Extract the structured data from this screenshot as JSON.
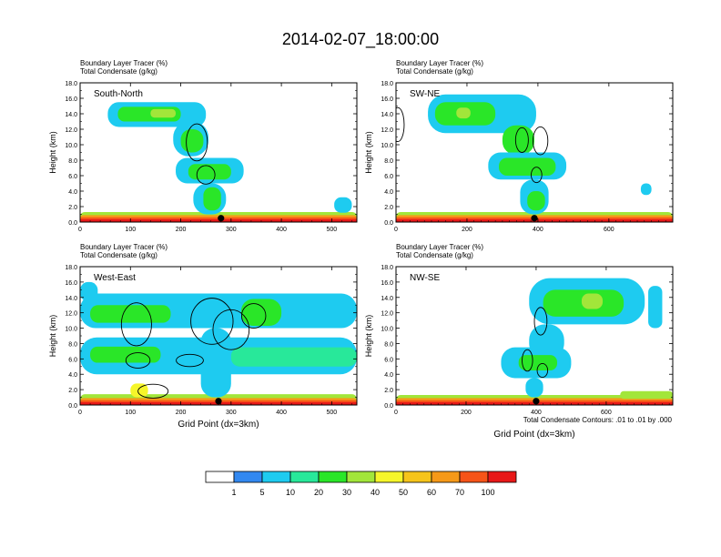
{
  "title": "2014-02-07_18:00:00",
  "chart_data": {
    "type": "heatmap",
    "title": "2014-02-07_18:00:00",
    "panels": [
      {
        "name": "South-North",
        "label_line1": "Boundary Layer Tracer   (%)",
        "label_line2": "Total Condensate   (g/kg)",
        "ylabel": "Height (km)",
        "xlabel": "",
        "xlim": [
          0,
          550
        ],
        "ylim": [
          0,
          18
        ],
        "xticks": [
          0,
          100,
          200,
          300,
          400,
          500
        ],
        "marker_x": 280,
        "layers": [
          {
            "x0": 0,
            "x1": 550,
            "y0": 0,
            "y1": 1.3,
            "bin": 5
          },
          {
            "x0": 0,
            "x1": 550,
            "y0": 0,
            "y1": 0.9,
            "bin": 8
          },
          {
            "x0": 0,
            "x1": 550,
            "y0": 0,
            "y1": 0.6,
            "bin": 9
          },
          {
            "x0": 0,
            "x1": 550,
            "y0": 0,
            "y1": 0.35,
            "bin": 10
          },
          {
            "x0": 55,
            "x1": 250,
            "y0": 12.3,
            "y1": 15.5,
            "bin": 2
          },
          {
            "x0": 75,
            "x1": 200,
            "y0": 13.0,
            "y1": 14.9,
            "bin": 4
          },
          {
            "x0": 140,
            "x1": 190,
            "y0": 13.5,
            "y1": 14.6,
            "bin": 5
          },
          {
            "x0": 185,
            "x1": 255,
            "y0": 8.5,
            "y1": 13.0,
            "bin": 2
          },
          {
            "x0": 200,
            "x1": 245,
            "y0": 9.0,
            "y1": 12.0,
            "bin": 4
          },
          {
            "x0": 190,
            "x1": 325,
            "y0": 5.0,
            "y1": 8.3,
            "bin": 2
          },
          {
            "x0": 215,
            "x1": 300,
            "y0": 5.5,
            "y1": 7.5,
            "bin": 4
          },
          {
            "x0": 225,
            "x1": 290,
            "y0": 1.0,
            "y1": 5.0,
            "bin": 2
          },
          {
            "x0": 245,
            "x1": 280,
            "y0": 1.5,
            "y1": 4.5,
            "bin": 4
          },
          {
            "x0": 505,
            "x1": 540,
            "y0": 1.2,
            "y1": 3.2,
            "bin": 2
          }
        ],
        "contours": [
          {
            "cx": 232,
            "cy": 10.3,
            "rx": 7,
            "ry": 2.4
          },
          {
            "cx": 250,
            "cy": 6.1,
            "rx": 6,
            "ry": 1.2
          }
        ]
      },
      {
        "name": "SW-NE",
        "label_line1": "Boundary Layer Tracer   (%)",
        "label_line2": "Total Condensate   (g/kg)",
        "ylabel": "Height (km)",
        "xlabel": "",
        "xlim": [
          0,
          780
        ],
        "ylim": [
          0,
          18
        ],
        "xticks": [
          0,
          200,
          400,
          600
        ],
        "marker_x": 390,
        "layers": [
          {
            "x0": 0,
            "x1": 780,
            "y0": 0,
            "y1": 1.3,
            "bin": 5
          },
          {
            "x0": 0,
            "x1": 780,
            "y0": 0,
            "y1": 0.9,
            "bin": 8
          },
          {
            "x0": 0,
            "x1": 780,
            "y0": 0,
            "y1": 0.6,
            "bin": 9
          },
          {
            "x0": 0,
            "x1": 780,
            "y0": 0,
            "y1": 0.35,
            "bin": 10
          },
          {
            "x0": 90,
            "x1": 395,
            "y0": 11.5,
            "y1": 16.5,
            "bin": 2
          },
          {
            "x0": 110,
            "x1": 280,
            "y0": 12.5,
            "y1": 15.5,
            "bin": 4
          },
          {
            "x0": 170,
            "x1": 210,
            "y0": 13.4,
            "y1": 14.8,
            "bin": 5
          },
          {
            "x0": 300,
            "x1": 390,
            "y0": 8.7,
            "y1": 12.5,
            "bin": 4
          },
          {
            "x0": 260,
            "x1": 480,
            "y0": 5.5,
            "y1": 9.0,
            "bin": 2
          },
          {
            "x0": 290,
            "x1": 450,
            "y0": 6.0,
            "y1": 8.3,
            "bin": 4
          },
          {
            "x0": 350,
            "x1": 430,
            "y0": 1.0,
            "y1": 5.5,
            "bin": 2
          },
          {
            "x0": 370,
            "x1": 420,
            "y0": 1.5,
            "y1": 4.0,
            "bin": 4
          },
          {
            "x0": 690,
            "x1": 720,
            "y0": 3.5,
            "y1": 5.0,
            "bin": 2
          }
        ],
        "contours": [
          {
            "cx": 355,
            "cy": 10.6,
            "rx": 6,
            "ry": 1.6
          },
          {
            "cx": 407,
            "cy": 10.5,
            "rx": 7,
            "ry": 1.8
          },
          {
            "cx": 5,
            "cy": 12.6,
            "rx": 6,
            "ry": 2.2
          },
          {
            "cx": 396,
            "cy": 6.1,
            "rx": 5,
            "ry": 1.0
          }
        ]
      },
      {
        "name": "West-East",
        "label_line1": "Boundary Layer Tracer   (%)",
        "label_line2": "Total Condensate   (g/kg)",
        "ylabel": "Height (km)",
        "xlabel": "Grid Point (dx=3km)",
        "xlim": [
          0,
          550
        ],
        "ylim": [
          0,
          18
        ],
        "xticks": [
          0,
          100,
          200,
          300,
          400,
          500
        ],
        "marker_x": 275,
        "layers": [
          {
            "x0": 0,
            "x1": 550,
            "y0": 0,
            "y1": 1.4,
            "bin": 5
          },
          {
            "x0": 0,
            "x1": 550,
            "y0": 0,
            "y1": 0.9,
            "bin": 8
          },
          {
            "x0": 0,
            "x1": 550,
            "y0": 0,
            "y1": 0.6,
            "bin": 9
          },
          {
            "x0": 0,
            "x1": 550,
            "y0": 0,
            "y1": 0.35,
            "bin": 10
          },
          {
            "x0": 0,
            "x1": 550,
            "y0": 10.0,
            "y1": 14.5,
            "bin": 2
          },
          {
            "x0": 20,
            "x1": 180,
            "y0": 10.7,
            "y1": 13.0,
            "bin": 4
          },
          {
            "x0": 320,
            "x1": 400,
            "y0": 10.3,
            "y1": 13.8,
            "bin": 4
          },
          {
            "x0": 0,
            "x1": 550,
            "y0": 4.0,
            "y1": 8.8,
            "bin": 2
          },
          {
            "x0": 20,
            "x1": 160,
            "y0": 5.5,
            "y1": 7.6,
            "bin": 4
          },
          {
            "x0": 300,
            "x1": 550,
            "y0": 5.0,
            "y1": 7.5,
            "bin": 3
          },
          {
            "x0": 240,
            "x1": 300,
            "y0": 1.0,
            "y1": 10.0,
            "bin": 2
          },
          {
            "x0": 0,
            "x1": 35,
            "y0": 13.5,
            "y1": 16.0,
            "bin": 2
          },
          {
            "x0": 100,
            "x1": 135,
            "y0": 1.0,
            "y1": 2.8,
            "bin": 6
          }
        ],
        "contours": [
          {
            "cx": 112,
            "cy": 10.5,
            "rx": 10,
            "ry": 2.8
          },
          {
            "cx": 262,
            "cy": 10.9,
            "rx": 14,
            "ry": 3.0
          },
          {
            "cx": 300,
            "cy": 9.8,
            "rx": 12,
            "ry": 2.6
          },
          {
            "cx": 345,
            "cy": 11.6,
            "rx": 8,
            "ry": 1.6
          },
          {
            "cx": 115,
            "cy": 5.8,
            "rx": 8,
            "ry": 1.0
          },
          {
            "cx": 218,
            "cy": 5.8,
            "rx": 9,
            "ry": 0.8
          },
          {
            "cx": 145,
            "cy": 1.8,
            "rx": 10,
            "ry": 0.9
          }
        ]
      },
      {
        "name": "NW-SE",
        "label_line1": "Boundary Layer Tracer   (%)",
        "label_line2": "Total Condensate   (g/kg)",
        "ylabel": "Height (km)",
        "xlabel": "Grid Point (dx=3km)",
        "xlim": [
          0,
          790
        ],
        "ylim": [
          0,
          18
        ],
        "xticks": [
          0,
          200,
          400,
          600
        ],
        "marker_x": 400,
        "layers": [
          {
            "x0": 0,
            "x1": 790,
            "y0": 0,
            "y1": 1.3,
            "bin": 5
          },
          {
            "x0": 0,
            "x1": 790,
            "y0": 0,
            "y1": 0.9,
            "bin": 8
          },
          {
            "x0": 0,
            "x1": 790,
            "y0": 0,
            "y1": 0.6,
            "bin": 9
          },
          {
            "x0": 0,
            "x1": 790,
            "y0": 0,
            "y1": 0.35,
            "bin": 10
          },
          {
            "x0": 380,
            "x1": 710,
            "y0": 10.5,
            "y1": 16.5,
            "bin": 2
          },
          {
            "x0": 420,
            "x1": 650,
            "y0": 11.5,
            "y1": 15.0,
            "bin": 4
          },
          {
            "x0": 530,
            "x1": 590,
            "y0": 12.5,
            "y1": 14.5,
            "bin": 5
          },
          {
            "x0": 380,
            "x1": 480,
            "y0": 6.0,
            "y1": 10.5,
            "bin": 2
          },
          {
            "x0": 300,
            "x1": 500,
            "y0": 3.5,
            "y1": 7.5,
            "bin": 2
          },
          {
            "x0": 350,
            "x1": 460,
            "y0": 4.5,
            "y1": 6.5,
            "bin": 4
          },
          {
            "x0": 370,
            "x1": 420,
            "y0": 1.0,
            "y1": 3.5,
            "bin": 2
          },
          {
            "x0": 720,
            "x1": 760,
            "y0": 10.0,
            "y1": 15.5,
            "bin": 2
          },
          {
            "x0": 640,
            "x1": 790,
            "y0": 0.8,
            "y1": 1.8,
            "bin": 5
          }
        ],
        "contours": [
          {
            "cx": 413,
            "cy": 10.9,
            "rx": 6,
            "ry": 1.8
          },
          {
            "cx": 375,
            "cy": 5.8,
            "rx": 5,
            "ry": 1.4
          },
          {
            "cx": 418,
            "cy": 4.5,
            "rx": 5,
            "ry": 0.9
          }
        ]
      }
    ],
    "colorbar": {
      "labels": [
        "1",
        "5",
        "10",
        "20",
        "30",
        "40",
        "50",
        "60",
        "70",
        "100"
      ],
      "colors": [
        "#ffffff",
        "#3288f0",
        "#1ecbf0",
        "#28e89a",
        "#2ae628",
        "#a2e63a",
        "#f6f62a",
        "#f6c41a",
        "#f69918",
        "#f65418",
        "#e81818"
      ],
      "outline": "#000000"
    },
    "footnote": "Total Condensate Contours: .01 to .01 by .000"
  }
}
